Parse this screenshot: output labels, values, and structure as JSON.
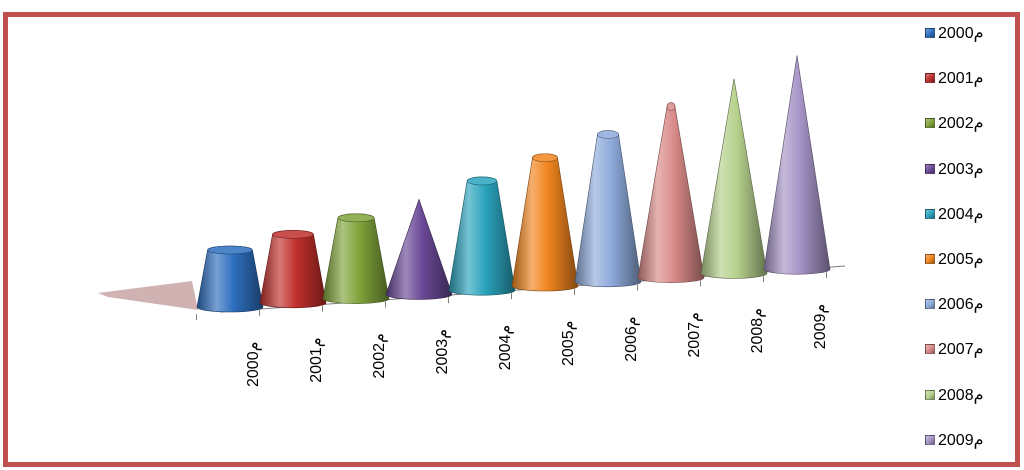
{
  "chart_data": {
    "type": "bar",
    "subtype": "3d-cone",
    "title": "",
    "xlabel": "",
    "ylabel": "",
    "categories": [
      "م2000",
      "م2001",
      "م2002",
      "م2003",
      "م2004",
      "م2005",
      "م2006",
      "م2007",
      "م2008",
      "م2009"
    ],
    "values": [
      60,
      72,
      85,
      100,
      115,
      135,
      155,
      180,
      205,
      225
    ],
    "grid": false,
    "legend_position": "right",
    "series": [
      {
        "name": "م2000",
        "color": "#2e6fbf"
      },
      {
        "name": "م2001",
        "color": "#c0302c"
      },
      {
        "name": "م2002",
        "color": "#7fa33a"
      },
      {
        "name": "م2003",
        "color": "#6a4896"
      },
      {
        "name": "م2004",
        "color": "#2aa3bd"
      },
      {
        "name": "م2005",
        "color": "#f0841e"
      },
      {
        "name": "م2006",
        "color": "#8eaadb"
      },
      {
        "name": "م2007",
        "color": "#d98a88"
      },
      {
        "name": "م2008",
        "color": "#b5d08c"
      },
      {
        "name": "م2009",
        "color": "#a593c6"
      }
    ]
  },
  "colors": {
    "border": "#c0504d",
    "floor": "#c9a5a4"
  }
}
